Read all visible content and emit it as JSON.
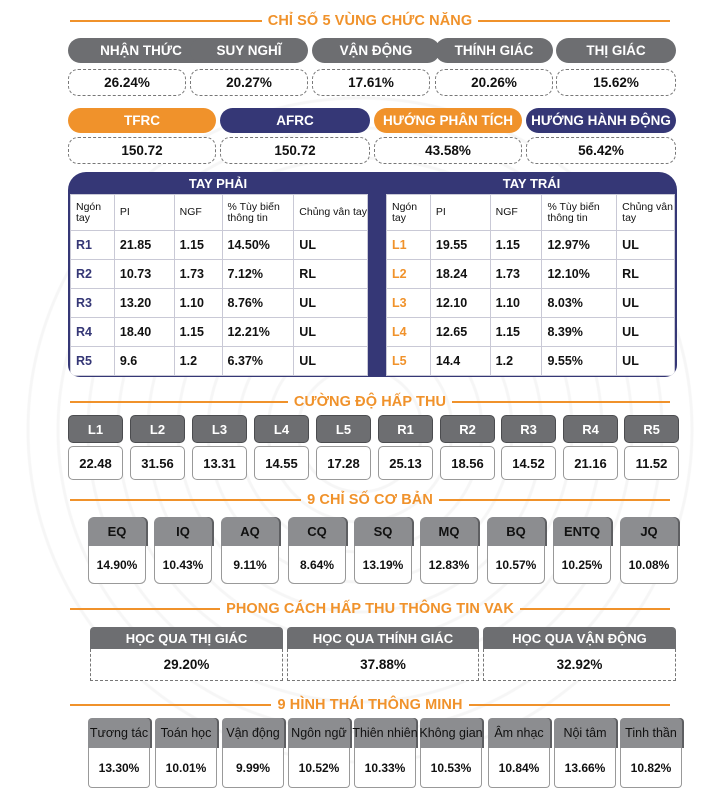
{
  "functional_zones": {
    "title": "CHỈ SỐ 5 VÙNG CHỨC NĂNG",
    "items": [
      {
        "label": "NHẬN THỨC",
        "value": "26.24%"
      },
      {
        "label": "SUY NGHĨ",
        "value": "20.27%"
      },
      {
        "label": "VẬN ĐỘNG",
        "value": "17.61%"
      },
      {
        "label": "THÍNH GIÁC",
        "value": "20.26%"
      },
      {
        "label": "THỊ GIÁC",
        "value": "15.62%"
      }
    ]
  },
  "capacity": {
    "items": [
      {
        "label": "TFRC",
        "value": "150.72"
      },
      {
        "label": "AFRC",
        "value": "150.72"
      },
      {
        "label": "HƯỚNG PHÂN TÍCH",
        "value": "43.58%"
      },
      {
        "label": "HƯỚNG HÀNH ĐỘNG",
        "value": "56.42%"
      }
    ]
  },
  "hands": {
    "columns": {
      "finger": "Ngón tay",
      "pi": "PI",
      "ngf": "NGF",
      "var": "% Tùy biến thông tin",
      "type": "Chủng vân tay"
    },
    "left": {
      "title": "TAY PHẢI",
      "rows": [
        {
          "id": "R1",
          "pi": "21.85",
          "ngf": "1.15",
          "var": "14.50%",
          "type": "UL"
        },
        {
          "id": "R2",
          "pi": "10.73",
          "ngf": "1.73",
          "var": "7.12%",
          "type": "RL"
        },
        {
          "id": "R3",
          "pi": "13.20",
          "ngf": "1.10",
          "var": "8.76%",
          "type": "UL"
        },
        {
          "id": "R4",
          "pi": "18.40",
          "ngf": "1.15",
          "var": "12.21%",
          "type": "UL"
        },
        {
          "id": "R5",
          "pi": "9.6",
          "ngf": "1.2",
          "var": "6.37%",
          "type": "UL"
        }
      ]
    },
    "right": {
      "title": "TAY TRÁI",
      "rows": [
        {
          "id": "L1",
          "pi": "19.55",
          "ngf": "1.15",
          "var": "12.97%",
          "type": "UL"
        },
        {
          "id": "L2",
          "pi": "18.24",
          "ngf": "1.73",
          "var": "12.10%",
          "type": "RL"
        },
        {
          "id": "L3",
          "pi": "12.10",
          "ngf": "1.10",
          "var": "8.03%",
          "type": "UL"
        },
        {
          "id": "L4",
          "pi": "12.65",
          "ngf": "1.15",
          "var": "8.39%",
          "type": "UL"
        },
        {
          "id": "L5",
          "pi": "14.4",
          "ngf": "1.2",
          "var": "9.55%",
          "type": "UL"
        }
      ]
    }
  },
  "absorption": {
    "title": "CƯỜNG ĐỘ HẤP THU",
    "items": [
      {
        "label": "L1",
        "value": "22.48"
      },
      {
        "label": "L2",
        "value": "31.56"
      },
      {
        "label": "L3",
        "value": "13.31"
      },
      {
        "label": "L4",
        "value": "14.55"
      },
      {
        "label": "L5",
        "value": "17.28"
      },
      {
        "label": "R1",
        "value": "25.13"
      },
      {
        "label": "R2",
        "value": "18.56"
      },
      {
        "label": "R3",
        "value": "14.52"
      },
      {
        "label": "R4",
        "value": "21.16"
      },
      {
        "label": "R5",
        "value": "11.52"
      }
    ]
  },
  "basic": {
    "title": "9 CHỈ SỐ CƠ BẢN",
    "items": [
      {
        "label": "EQ",
        "value": "14.90%"
      },
      {
        "label": "IQ",
        "value": "10.43%"
      },
      {
        "label": "AQ",
        "value": "9.11%"
      },
      {
        "label": "CQ",
        "value": "8.64%"
      },
      {
        "label": "SQ",
        "value": "13.19%"
      },
      {
        "label": "MQ",
        "value": "12.83%"
      },
      {
        "label": "BQ",
        "value": "10.57%"
      },
      {
        "label": "ENTQ",
        "value": "10.25%"
      },
      {
        "label": "JQ",
        "value": "10.08%"
      }
    ]
  },
  "vak": {
    "title": "PHONG CÁCH HẤP THU THÔNG TIN VAK",
    "items": [
      {
        "label": "HỌC QUA THỊ GIÁC",
        "value": "29.20%"
      },
      {
        "label": "HỌC QUA THÍNH GIÁC",
        "value": "37.88%"
      },
      {
        "label": "HỌC QUA VẬN ĐỘNG",
        "value": "32.92%"
      }
    ]
  },
  "intelligence": {
    "title": "9 HÌNH THÁI THÔNG MINH",
    "items": [
      {
        "label": "Tương tác",
        "value": "13.30%"
      },
      {
        "label": "Toán học",
        "value": "10.01%"
      },
      {
        "label": "Vận động",
        "value": "9.99%"
      },
      {
        "label": "Ngôn ngữ",
        "value": "10.52%"
      },
      {
        "label": "Thiên nhiên",
        "value": "10.33%"
      },
      {
        "label": "Không gian",
        "value": "10.53%"
      },
      {
        "label": "Âm nhạc",
        "value": "10.84%"
      },
      {
        "label": "Nội tâm",
        "value": "13.66%"
      },
      {
        "label": "Tinh thần",
        "value": "10.82%"
      }
    ]
  }
}
